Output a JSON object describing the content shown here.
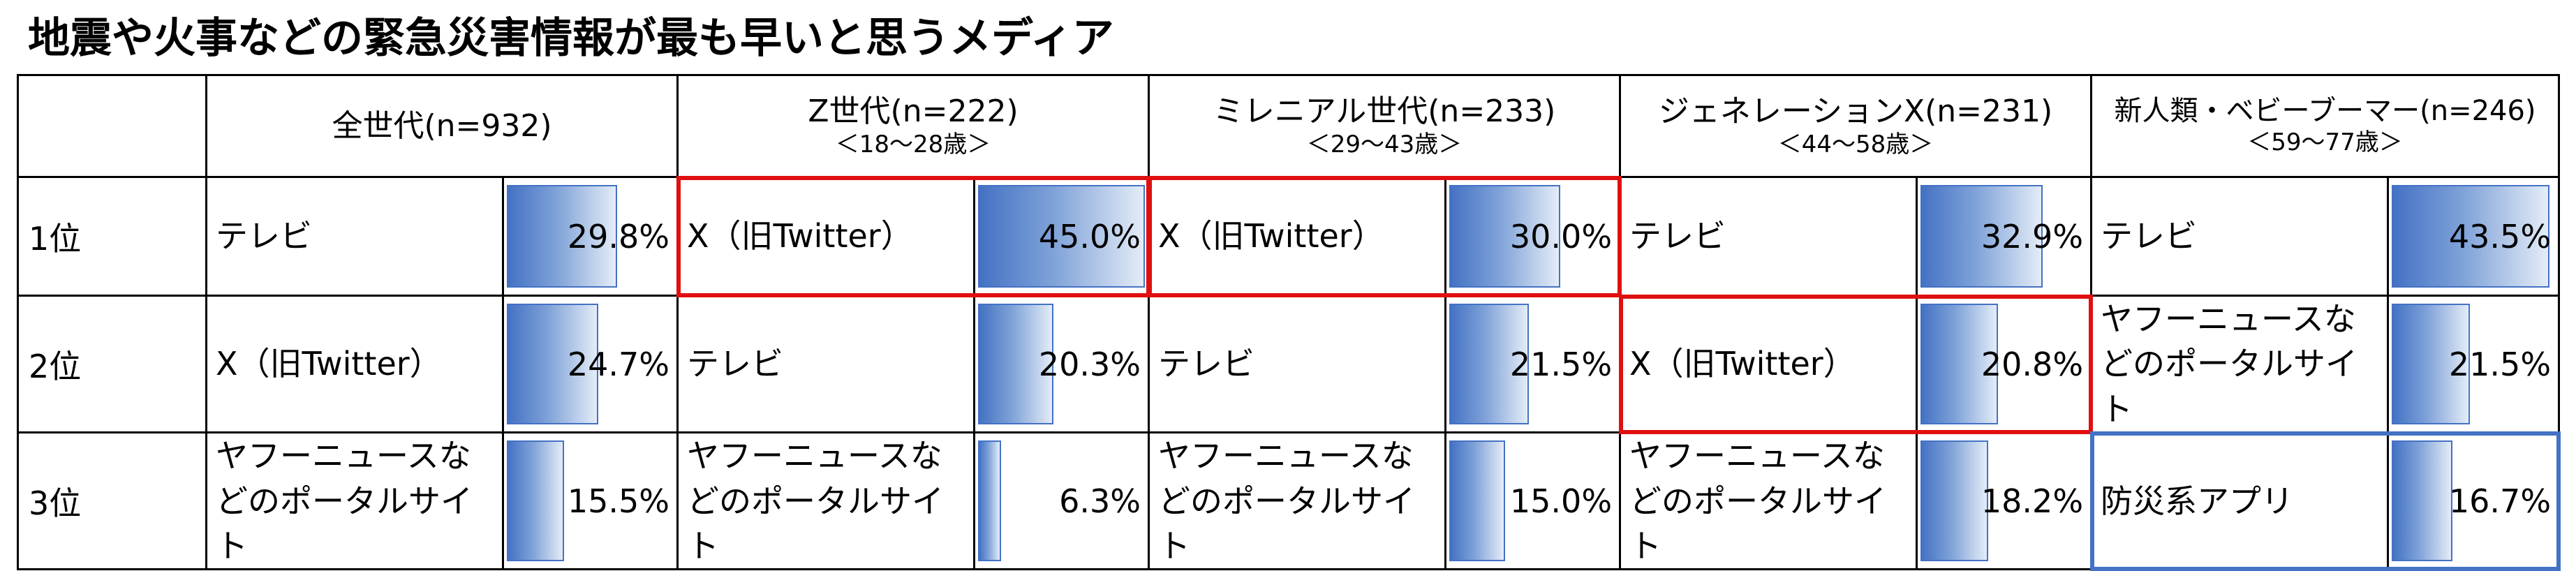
{
  "title": "地震や火事などの緊急災害情報が最も早いと思うメディア",
  "chart_data": {
    "type": "table",
    "rank_labels": [
      "1位",
      "2位",
      "3位"
    ],
    "groups": [
      {
        "label": "全世代(n=932)",
        "sub": "",
        "rows": [
          {
            "media": "テレビ",
            "value": 29.8,
            "text": "29.8%"
          },
          {
            "media": "X（旧Twitter）",
            "value": 24.7,
            "text": "24.7%"
          },
          {
            "media": "ヤフーニュースなどのポータルサイト",
            "value": 15.5,
            "text": "15.5%"
          }
        ]
      },
      {
        "label": "Z世代(n=222)",
        "sub": "＜18～28歳＞",
        "rows": [
          {
            "media": "X（旧Twitter）",
            "value": 45.0,
            "text": "45.0%"
          },
          {
            "media": "テレビ",
            "value": 20.3,
            "text": "20.3%"
          },
          {
            "media": "ヤフーニュースなどのポータルサイト",
            "value": 6.3,
            "text": "6.3%"
          }
        ]
      },
      {
        "label": "ミレニアル世代(n=233)",
        "sub": "＜29～43歳＞",
        "rows": [
          {
            "media": "X（旧Twitter）",
            "value": 30.0,
            "text": "30.0%"
          },
          {
            "media": "テレビ",
            "value": 21.5,
            "text": "21.5%"
          },
          {
            "media": "ヤフーニュースなどのポータルサイト",
            "value": 15.0,
            "text": "15.0%"
          }
        ]
      },
      {
        "label": "ジェネレーションX(n=231)",
        "sub": "＜44～58歳＞",
        "rows": [
          {
            "media": "テレビ",
            "value": 32.9,
            "text": "32.9%"
          },
          {
            "media": "X（旧Twitter）",
            "value": 20.8,
            "text": "20.8%"
          },
          {
            "media": "ヤフーニュースなどのポータルサイト",
            "value": 18.2,
            "text": "18.2%"
          }
        ]
      },
      {
        "label": "新人類・ベビーブーマー(n=246)",
        "sub": "＜59～77歳＞",
        "rows": [
          {
            "media": "テレビ",
            "value": 43.5,
            "text": "43.5%"
          },
          {
            "media": "ヤフーニュースなどのポータルサイト",
            "value": 21.5,
            "text": "21.5%"
          },
          {
            "media": "防災系アプリ",
            "value": 16.7,
            "text": "16.7%"
          }
        ]
      }
    ],
    "bar_scale_max": 45.0,
    "bar_color": "#4472C4",
    "highlights": [
      {
        "group": 1,
        "rank": 1,
        "color": "#E01010"
      },
      {
        "group": 2,
        "rank": 1,
        "color": "#E01010"
      },
      {
        "group": 3,
        "rank": 2,
        "color": "#E01010"
      },
      {
        "group": 4,
        "rank": 3,
        "color": "#4472C4"
      }
    ]
  }
}
